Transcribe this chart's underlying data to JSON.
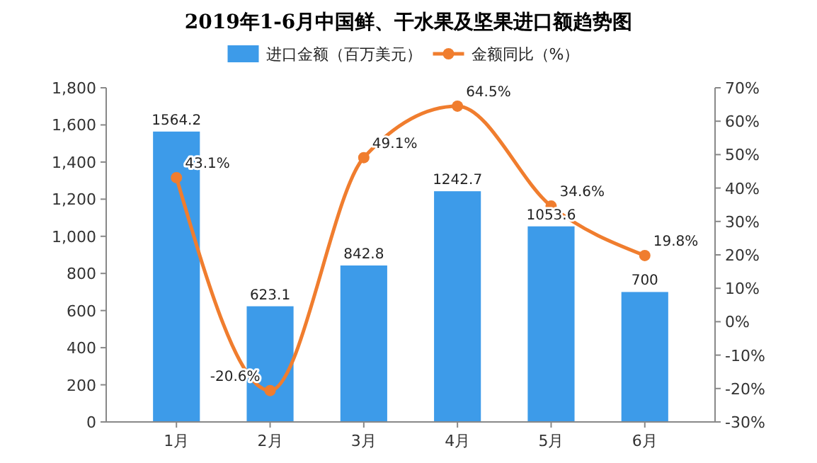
{
  "chart_data": {
    "type": "bar",
    "title": "2019年1-6月中国鲜、干水果及坚果进口额趋势图",
    "categories": [
      "1月",
      "2月",
      "3月",
      "4月",
      "5月",
      "6月"
    ],
    "series": [
      {
        "name": "进口金额（百万美元）",
        "color": "#3d9be9",
        "values": [
          1564.2,
          623.1,
          842.8,
          1242.7,
          1053.6,
          700
        ],
        "value_labels": [
          "1564.2",
          "623.1",
          "842.8",
          "1242.7",
          "1053.6",
          "700"
        ]
      },
      {
        "name": "金额同比（%）",
        "type": "line",
        "axis": "y2",
        "color": "#f07d2e",
        "marker": "circle",
        "values": [
          43.1,
          -20.6,
          49.1,
          64.5,
          34.6,
          19.8
        ],
        "value_labels": [
          "43.1%",
          "-20.6%",
          "49.1%",
          "64.5%",
          "34.6%",
          "19.8%"
        ]
      }
    ],
    "ylim": [
      0,
      1800
    ],
    "yticks": [
      0,
      200,
      400,
      600,
      {
        "value": 800,
        "label": "800"
      },
      {
        "value": 1000,
        "label": "1,000"
      },
      {
        "value": 1200,
        "label": "1,200"
      },
      {
        "value": 1400,
        "label": "1,400"
      },
      {
        "value": 1600,
        "label": "1,600"
      },
      {
        "value": 1800,
        "label": "1,800"
      }
    ],
    "y2lim": [
      -30,
      70
    ],
    "y2ticks": [
      {
        "value": -30,
        "label": "-30%"
      },
      {
        "value": -20,
        "label": "-20%"
      },
      {
        "value": -10,
        "label": "-10%"
      },
      {
        "value": 0,
        "label": "0%"
      },
      {
        "value": 10,
        "label": "10%"
      },
      {
        "value": 20,
        "label": "20%"
      },
      {
        "value": 30,
        "label": "30%"
      },
      {
        "value": 40,
        "label": "40%"
      },
      {
        "value": 50,
        "label": "50%"
      },
      {
        "value": 60,
        "label": "60%"
      },
      {
        "value": 70,
        "label": "70%"
      }
    ],
    "legend": "top"
  }
}
